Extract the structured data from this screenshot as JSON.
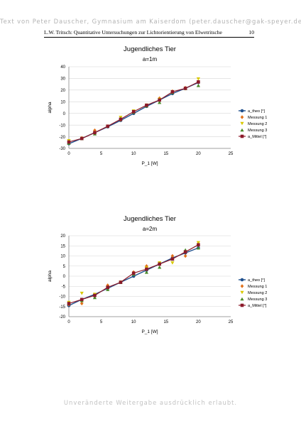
{
  "watermark_top": "Text von Peter Dauscher, Gymnasium am Kaiserdom (peter.dauscher@gak-speyer.de)",
  "header": {
    "title": "L.W. Tritsch: Quantitative Untersuchungen zur Lichtorientierung von Elwetritsche",
    "page": "10"
  },
  "watermark_bottom": "Unveränderte Weitergabe ausdrücklich erlaubt.",
  "colors": {
    "a_theo": "#1f4f8c",
    "messung1": "#e0701a",
    "messung2": "#d9c800",
    "messung3": "#4a8a2a",
    "a_mittel": "#8b1a2a",
    "grid": "#d6d6d6",
    "axis": "#888888"
  },
  "chart_data": [
    {
      "type": "line",
      "title": "Jugendliches Tier",
      "subtitle": "a=1m",
      "xlabel": "P_1 [W]",
      "ylabel": "alpha",
      "xlim": [
        0,
        25
      ],
      "ylim": [
        -30,
        40
      ],
      "xticks": [
        0,
        5,
        10,
        15,
        20,
        25
      ],
      "yticks": [
        -30,
        -20,
        -10,
        0,
        10,
        20,
        30,
        40
      ],
      "grid": true,
      "legend": "right",
      "x": [
        0,
        2,
        4,
        6,
        8,
        10,
        12,
        14,
        16,
        18,
        20
      ],
      "series": [
        {
          "name": "a_theo [°]",
          "marker": "circle",
          "line": true,
          "width": 1.4,
          "values": [
            -26,
            -21.5,
            -16.5,
            -11.5,
            -6,
            0,
            6,
            11.5,
            17,
            21.5,
            26.5
          ]
        },
        {
          "name": "Messung 1",
          "marker": "diamond",
          "line": false,
          "values": [
            -24,
            -21,
            -14.5,
            -11,
            -5.5,
            1.5,
            7,
            13,
            19,
            22,
            27
          ]
        },
        {
          "name": "Messung 2",
          "marker": "triangle-down",
          "line": false,
          "values": [
            -23.5,
            -21.5,
            -17,
            -11,
            -3.5,
            2,
            7,
            12,
            18,
            21,
            29.5
          ]
        },
        {
          "name": "Messung 3",
          "marker": "triangle-up",
          "line": false,
          "values": [
            -25.5,
            -21.5,
            -17.5,
            -11,
            -4.5,
            1,
            6.5,
            9.5,
            18,
            21.5,
            24
          ]
        },
        {
          "name": "a_Mittel [°]",
          "marker": "square",
          "line": true,
          "width": 1.2,
          "values": [
            -24.5,
            -21.5,
            -16.5,
            -11,
            -5,
            1.5,
            7,
            11.5,
            18.5,
            21.5,
            27
          ]
        }
      ]
    },
    {
      "type": "line",
      "title": "Jugendliches Tier",
      "subtitle": "a=2m",
      "xlabel": "P_1 [W]",
      "ylabel": "alpha",
      "xlim": [
        0,
        25
      ],
      "ylim": [
        -20,
        20
      ],
      "xticks": [
        0,
        5,
        10,
        15,
        20,
        25
      ],
      "yticks": [
        -20,
        -15,
        -10,
        -5,
        0,
        5,
        10,
        15,
        20
      ],
      "grid": true,
      "legend": "right",
      "x": [
        0,
        2,
        4,
        6,
        8,
        10,
        12,
        14,
        16,
        18,
        20
      ],
      "series": [
        {
          "name": "a_theo [°]",
          "marker": "circle",
          "line": true,
          "width": 1.4,
          "values": [
            -14.5,
            -11.5,
            -9,
            -6,
            -3,
            0,
            3,
            6,
            9,
            11.5,
            14
          ]
        },
        {
          "name": "Messung 1",
          "marker": "diamond",
          "line": false,
          "values": [
            -14,
            -13.5,
            -9.5,
            -4.5,
            -3,
            2,
            5,
            6.5,
            10,
            10,
            16
          ]
        },
        {
          "name": "Messung 2",
          "marker": "triangle-down",
          "line": false,
          "values": [
            -13,
            -8.5,
            -9,
            -6,
            -3,
            1,
            4,
            6.5,
            6.5,
            12,
            16.5
          ]
        },
        {
          "name": "Messung 3",
          "marker": "triangle-up",
          "line": false,
          "values": [
            -13.5,
            -12,
            -10.5,
            -6.5,
            -3,
            1,
            2,
            4.5,
            8.5,
            13,
            14
          ]
        },
        {
          "name": "a_Mittel [°]",
          "marker": "square",
          "line": true,
          "width": 1.2,
          "values": [
            -13.5,
            -11.5,
            -9.5,
            -5.5,
            -3,
            1.5,
            3.5,
            6,
            8.5,
            12,
            15.5
          ]
        }
      ]
    }
  ]
}
